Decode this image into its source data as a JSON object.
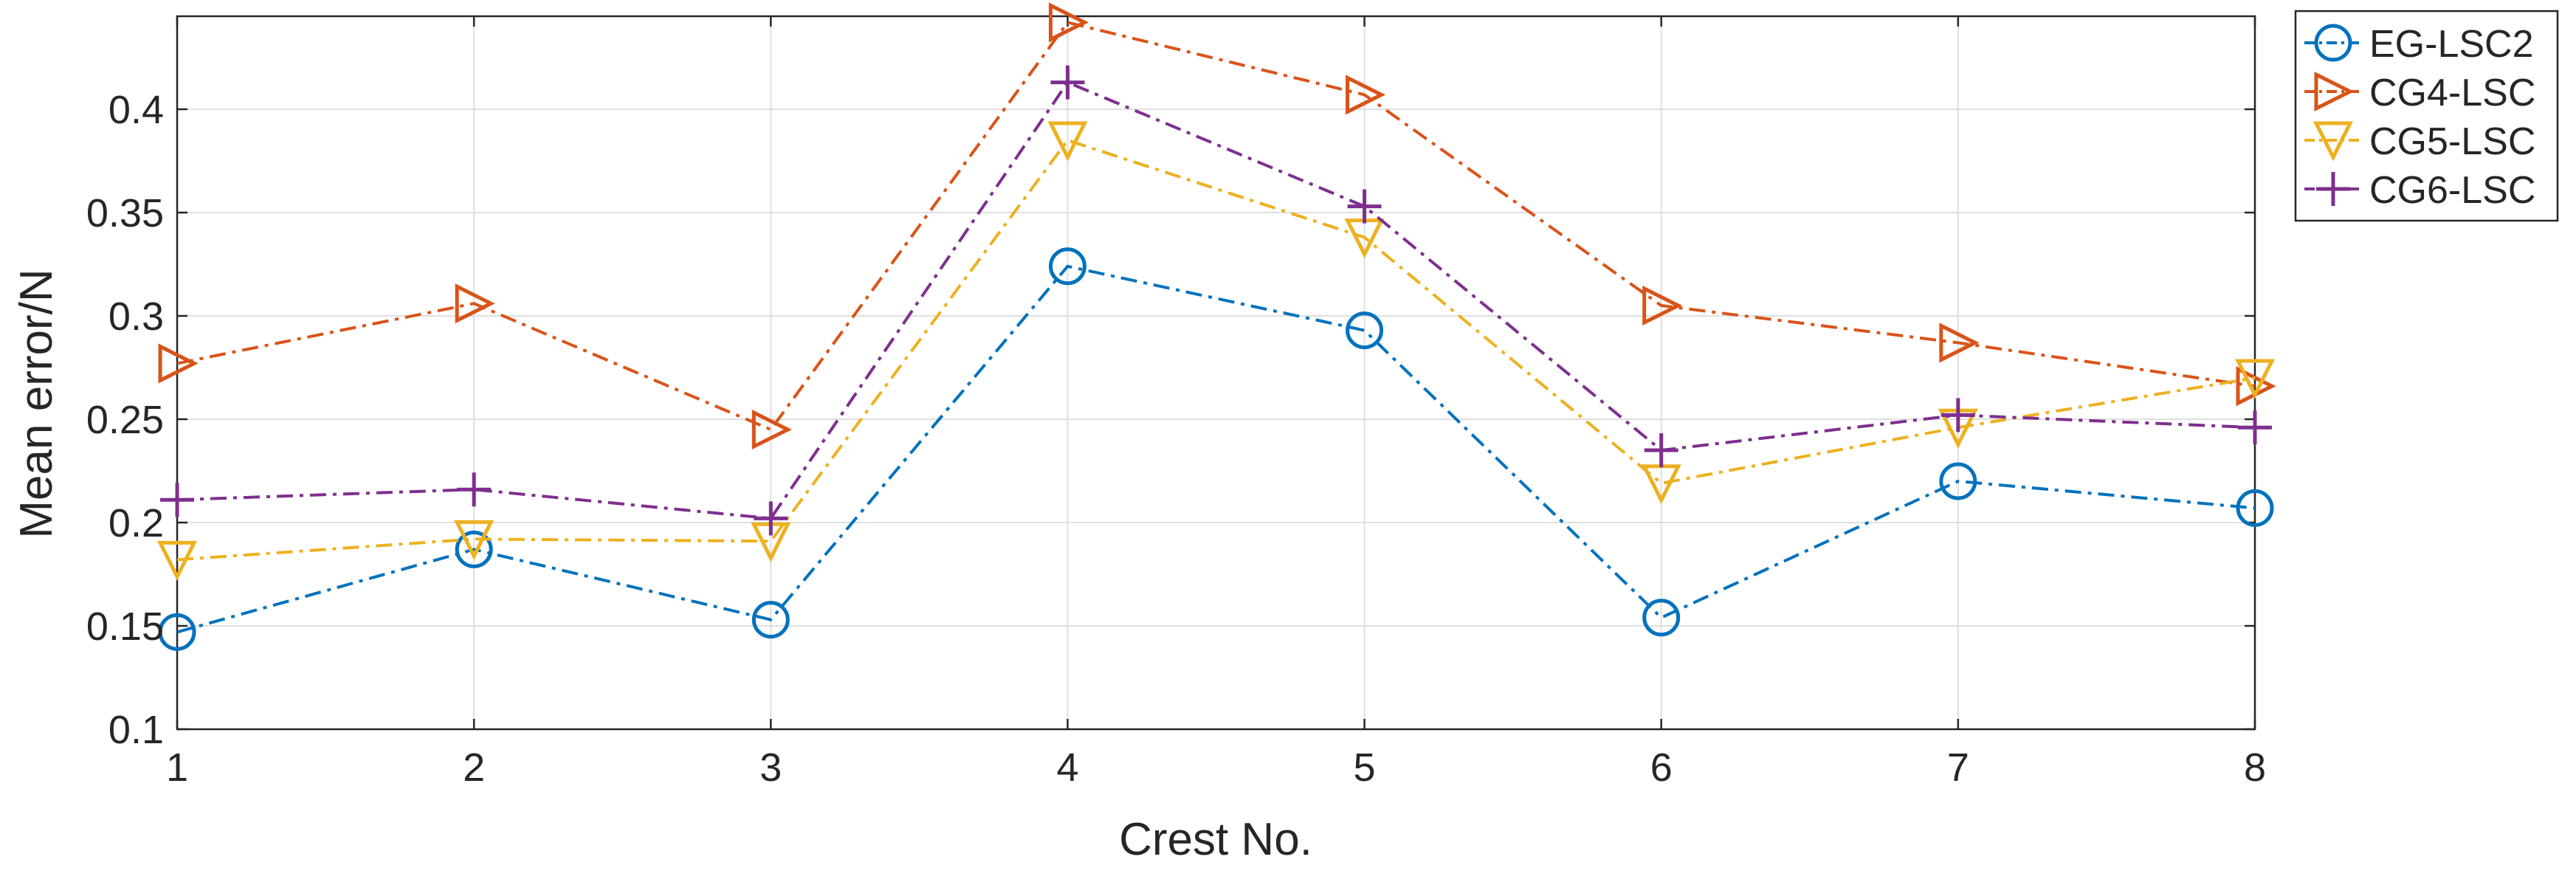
{
  "chart_data": {
    "type": "line",
    "title": "",
    "xlabel": "Crest No.",
    "ylabel": "Mean error/N",
    "x": [
      1,
      2,
      3,
      4,
      5,
      6,
      7,
      8
    ],
    "xlim": [
      1,
      8
    ],
    "ylim": [
      0.1,
      0.445
    ],
    "xticks": [
      "1",
      "2",
      "3",
      "4",
      "5",
      "6",
      "7",
      "8"
    ],
    "yticks": [
      0.1,
      0.15,
      0.2,
      0.25,
      0.3,
      0.35,
      0.4
    ],
    "ytick_labels": [
      "0.1",
      "0.15",
      "0.2",
      "0.25",
      "0.3",
      "0.35",
      "0.4"
    ],
    "grid": true,
    "legend_position": "outside-top-right",
    "series": [
      {
        "name": "EG-LSC2",
        "marker": "circle",
        "color": "#0072BD",
        "values": [
          0.147,
          0.187,
          0.153,
          0.324,
          0.293,
          0.154,
          0.22,
          0.207
        ]
      },
      {
        "name": "CG4-LSC",
        "marker": "triangle-right",
        "color": "#D95319",
        "values": [
          0.277,
          0.306,
          0.245,
          0.442,
          0.407,
          0.305,
          0.287,
          0.266
        ]
      },
      {
        "name": "CG5-LSC",
        "marker": "triangle-down",
        "color": "#EDB120",
        "values": [
          0.182,
          0.192,
          0.191,
          0.385,
          0.338,
          0.219,
          0.246,
          0.27
        ]
      },
      {
        "name": "CG6-LSC",
        "marker": "plus",
        "color": "#7E2F8E",
        "values": [
          0.211,
          0.216,
          0.202,
          0.413,
          0.353,
          0.235,
          0.252,
          0.246
        ]
      }
    ]
  }
}
